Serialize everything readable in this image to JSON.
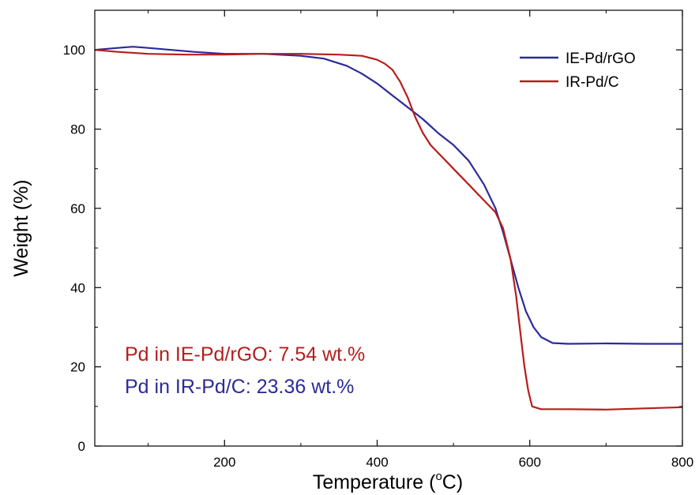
{
  "chart_data": {
    "type": "line",
    "xlabel": "Temperature (",
    "xlabel_super": "o",
    "xlabel_unit": "C)",
    "ylabel": "Weight (%)",
    "xlim": [
      30,
      800
    ],
    "ylim": [
      0,
      110
    ],
    "x_ticks": [
      200,
      400,
      600,
      800
    ],
    "y_ticks": [
      0,
      20,
      40,
      60,
      80,
      100
    ],
    "grid": false,
    "legend_position": "top-right",
    "series": [
      {
        "name": "IE-Pd/rGO",
        "color": "#2b2b9a",
        "x": [
          30,
          60,
          80,
          100,
          130,
          160,
          200,
          250,
          300,
          330,
          360,
          380,
          400,
          420,
          440,
          460,
          480,
          500,
          520,
          540,
          555,
          565,
          575,
          585,
          595,
          605,
          615,
          630,
          650,
          700,
          750,
          800
        ],
        "y": [
          100,
          100.5,
          100.8,
          100.5,
          100,
          99.5,
          99,
          99,
          98.5,
          97.8,
          96,
          94,
          91.5,
          88.5,
          85.5,
          82.5,
          79,
          76,
          72,
          66,
          60,
          54,
          47,
          40,
          34,
          30,
          27.5,
          26,
          25.8,
          25.9,
          25.8,
          25.8
        ]
      },
      {
        "name": "IR-Pd/C",
        "color": "#b81c1c",
        "x": [
          30,
          60,
          100,
          150,
          200,
          250,
          300,
          350,
          380,
          400,
          410,
          420,
          430,
          440,
          450,
          460,
          470,
          480,
          500,
          520,
          540,
          555,
          565,
          575,
          582,
          588,
          593,
          598,
          603,
          615,
          650,
          700,
          750,
          800
        ],
        "y": [
          100,
          99.5,
          99,
          98.8,
          98.8,
          99,
          99,
          98.8,
          98.5,
          97.5,
          96.5,
          95,
          92,
          88,
          83,
          79,
          76,
          74,
          70,
          66,
          62,
          59,
          55,
          47,
          38,
          28,
          20,
          14,
          10,
          9.3,
          9.3,
          9.2,
          9.5,
          9.8
        ]
      }
    ],
    "annotations": [
      {
        "text": "Pd in IE-Pd/rGO: 7.54 wt.%",
        "color": "#b81c1c"
      },
      {
        "text": "Pd in IR-Pd/C: 23.36 wt.%",
        "color": "#2b2b9a"
      }
    ]
  }
}
